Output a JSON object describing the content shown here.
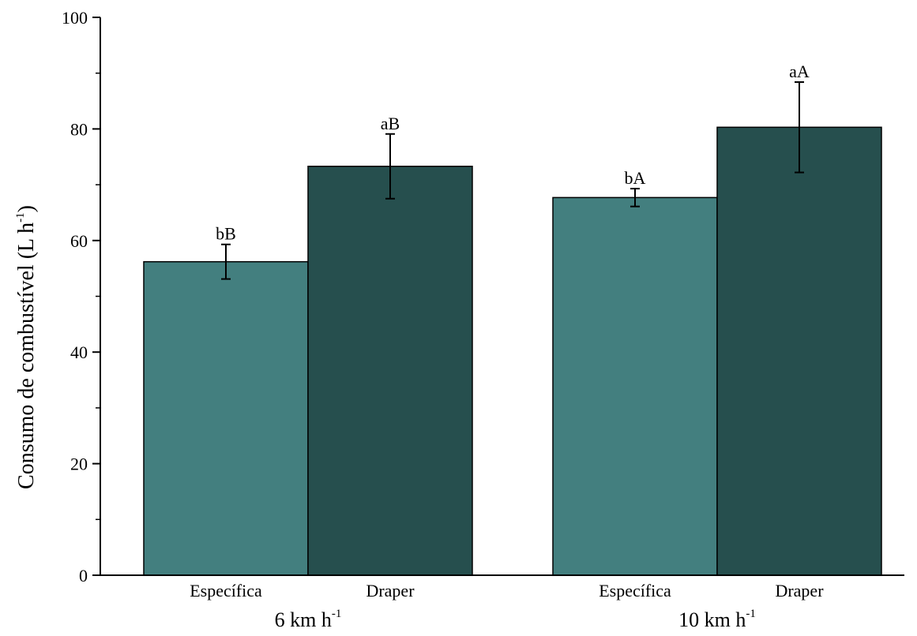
{
  "chart_data": {
    "type": "bar",
    "title": "",
    "ylabel": "Consumo de combustível (L h",
    "ylabel_sup": "-1",
    "ylabel_close": ")",
    "ylim": [
      0,
      100
    ],
    "yticks": [
      0,
      20,
      40,
      60,
      80,
      100
    ],
    "y_minor_step": 10,
    "grid": false,
    "groups": [
      {
        "label": "6 km h",
        "label_sup": "-1",
        "bars": [
          {
            "category": "Específica",
            "value": 56.2,
            "err_low": 53.1,
            "err_high": 59.3,
            "letter": "bB",
            "color": "#437f7f"
          },
          {
            "category": "Draper",
            "value": 73.3,
            "err_low": 67.5,
            "err_high": 79.1,
            "letter": "aB",
            "color": "#264f4e"
          }
        ]
      },
      {
        "label": "10 km h",
        "label_sup": "-1",
        "bars": [
          {
            "category": "Específica",
            "value": 67.7,
            "err_low": 66.1,
            "err_high": 69.3,
            "letter": "bA",
            "color": "#437f7f"
          },
          {
            "category": "Draper",
            "value": 80.3,
            "err_low": 72.2,
            "err_high": 88.4,
            "letter": "aA",
            "color": "#264f4e"
          }
        ]
      }
    ]
  }
}
